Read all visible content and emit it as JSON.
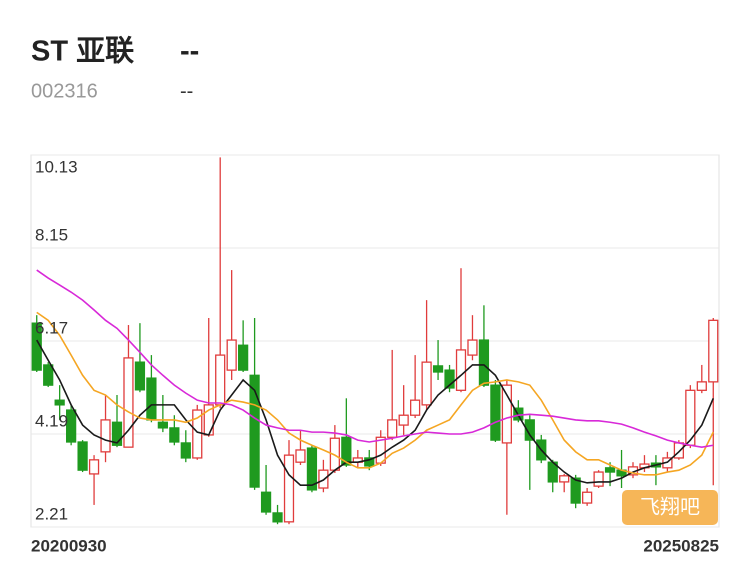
{
  "header": {
    "name": "ST 亚联",
    "price": "--",
    "code": "002316",
    "change": "--"
  },
  "watermark": "飞翔吧",
  "chart_data": {
    "type": "candlestick",
    "categories": [
      "20200930",
      null,
      null,
      null,
      null,
      null,
      null,
      null,
      null,
      null,
      null,
      null,
      null,
      null,
      null,
      null,
      null,
      null,
      null,
      null,
      null,
      null,
      null,
      null,
      null,
      null,
      null,
      null,
      null,
      null,
      null,
      null,
      null,
      null,
      null,
      null,
      null,
      null,
      null,
      null,
      null,
      null,
      null,
      null,
      null,
      null,
      null,
      null,
      null,
      null,
      null,
      null,
      null,
      null,
      null,
      null,
      null,
      null,
      null,
      "20250825"
    ],
    "open": [
      6.55,
      5.66,
      4.91,
      4.7,
      4.02,
      3.34,
      3.81,
      4.44,
      3.91,
      5.72,
      5.38,
      4.44,
      4.32,
      4.0,
      3.68,
      4.17,
      4.81,
      5.55,
      6.08,
      5.44,
      2.95,
      2.51,
      2.32,
      3.59,
      3.89,
      3.04,
      3.42,
      4.12,
      3.59,
      3.68,
      3.57,
      4.12,
      4.38,
      4.59,
      4.81,
      5.64,
      5.55,
      5.12,
      5.87,
      6.19,
      5.23,
      4.0,
      4.74,
      4.49,
      4.06,
      3.59,
      3.17,
      3.25,
      2.72,
      3.08,
      3.47,
      3.42,
      3.32,
      3.47,
      3.57,
      3.47,
      3.68,
      3.95,
      5.12,
      5.3
    ],
    "close": [
      5.55,
      5.23,
      4.81,
      4.02,
      3.42,
      3.64,
      4.49,
      3.95,
      5.81,
      5.13,
      4.49,
      4.32,
      4.02,
      3.68,
      4.7,
      4.81,
      5.87,
      6.19,
      5.55,
      3.06,
      2.53,
      2.32,
      3.74,
      3.85,
      3.0,
      3.42,
      4.1,
      3.53,
      3.68,
      3.51,
      4.12,
      4.49,
      4.59,
      4.91,
      5.72,
      5.51,
      5.17,
      5.98,
      6.19,
      5.23,
      4.06,
      5.23,
      4.49,
      4.06,
      3.64,
      3.17,
      3.3,
      2.72,
      2.95,
      3.38,
      3.38,
      3.3,
      3.49,
      3.55,
      3.49,
      3.68,
      4.0,
      5.12,
      5.3,
      6.61
    ],
    "high": [
      6.72,
      5.72,
      5.23,
      4.81,
      4.06,
      3.74,
      5.02,
      5.02,
      6.51,
      6.55,
      5.87,
      5.02,
      4.59,
      4.27,
      4.81,
      6.66,
      10.08,
      7.68,
      6.61,
      6.66,
      3.53,
      2.68,
      4.06,
      4.27,
      3.95,
      3.64,
      4.38,
      4.95,
      3.85,
      3.85,
      4.27,
      5.98,
      5.23,
      5.87,
      7.04,
      6.19,
      5.66,
      7.72,
      6.72,
      6.93,
      5.34,
      5.34,
      4.91,
      4.59,
      4.17,
      3.64,
      3.34,
      3.32,
      3.04,
      3.42,
      3.59,
      3.85,
      3.59,
      3.74,
      3.74,
      3.81,
      4.06,
      5.23,
      5.66,
      6.66
    ],
    "low": [
      5.51,
      5.19,
      4.49,
      3.95,
      3.38,
      2.68,
      3.59,
      3.91,
      3.91,
      5.08,
      4.44,
      4.23,
      3.95,
      3.59,
      3.64,
      4.13,
      4.74,
      5.34,
      5.51,
      3.0,
      2.47,
      2.27,
      2.27,
      3.53,
      2.95,
      2.95,
      3.36,
      3.49,
      3.47,
      3.42,
      3.51,
      4.06,
      4.17,
      4.53,
      4.7,
      5.34,
      5.08,
      5.08,
      5.76,
      5.19,
      4.02,
      2.47,
      4.44,
      3.0,
      3.57,
      2.95,
      2.95,
      2.61,
      2.66,
      3.04,
      3.08,
      3.04,
      3.25,
      3.38,
      3.1,
      3.38,
      3.64,
      3.89,
      5.06,
      3.1
    ],
    "up_color": "#e03c3c",
    "down_color": "#1f9a1f",
    "series": [
      {
        "color": "#1a1a1a",
        "values": [
          6.19,
          5.76,
          5.34,
          4.81,
          4.38,
          4.17,
          4.06,
          4.0,
          4.27,
          4.59,
          4.81,
          4.81,
          4.81,
          4.49,
          4.23,
          4.17,
          4.7,
          5.02,
          5.34,
          5.12,
          4.49,
          3.74,
          3.32,
          3.1,
          3.1,
          3.21,
          3.42,
          3.59,
          3.59,
          3.64,
          3.74,
          3.91,
          4.06,
          4.27,
          4.7,
          5.02,
          5.23,
          5.44,
          5.66,
          5.66,
          5.44,
          5.02,
          4.59,
          4.17,
          3.85,
          3.59,
          3.38,
          3.21,
          3.15,
          3.17,
          3.17,
          3.25,
          3.38,
          3.47,
          3.53,
          3.59,
          3.81,
          4.06,
          4.38,
          4.95
        ]
      },
      {
        "color": "#f5a623",
        "values": [
          6.78,
          6.61,
          6.29,
          5.87,
          5.44,
          5.12,
          5.02,
          4.81,
          4.66,
          4.53,
          4.49,
          4.49,
          4.49,
          4.44,
          4.53,
          4.7,
          4.81,
          4.91,
          4.87,
          4.81,
          4.7,
          4.49,
          4.21,
          4.06,
          3.95,
          3.85,
          3.74,
          3.59,
          3.47,
          3.47,
          3.57,
          3.78,
          3.89,
          4.06,
          4.27,
          4.38,
          4.49,
          4.81,
          5.12,
          5.27,
          5.3,
          5.34,
          5.3,
          5.23,
          4.91,
          4.49,
          4.06,
          3.81,
          3.64,
          3.64,
          3.53,
          3.42,
          3.36,
          3.32,
          3.32,
          3.38,
          3.42,
          3.53,
          3.74,
          4.23
        ]
      },
      {
        "color": "#d829d8",
        "values": [
          7.68,
          7.51,
          7.36,
          7.21,
          7.04,
          6.83,
          6.61,
          6.44,
          6.19,
          5.93,
          5.66,
          5.44,
          5.23,
          5.06,
          4.91,
          4.85,
          4.85,
          4.81,
          4.7,
          4.53,
          4.38,
          4.32,
          4.27,
          4.27,
          4.23,
          4.23,
          4.21,
          4.17,
          4.06,
          4.02,
          4.06,
          4.1,
          4.15,
          4.19,
          4.23,
          4.21,
          4.19,
          4.19,
          4.23,
          4.32,
          4.44,
          4.53,
          4.59,
          4.61,
          4.59,
          4.57,
          4.53,
          4.49,
          4.47,
          4.47,
          4.44,
          4.4,
          4.32,
          4.23,
          4.15,
          4.06,
          4.0,
          3.95,
          3.91,
          3.95
        ]
      }
    ],
    "ylim": [
      2.21,
      10.13
    ],
    "yticks": [
      2.21,
      4.19,
      6.17,
      8.15,
      10.13
    ],
    "grid": true
  }
}
